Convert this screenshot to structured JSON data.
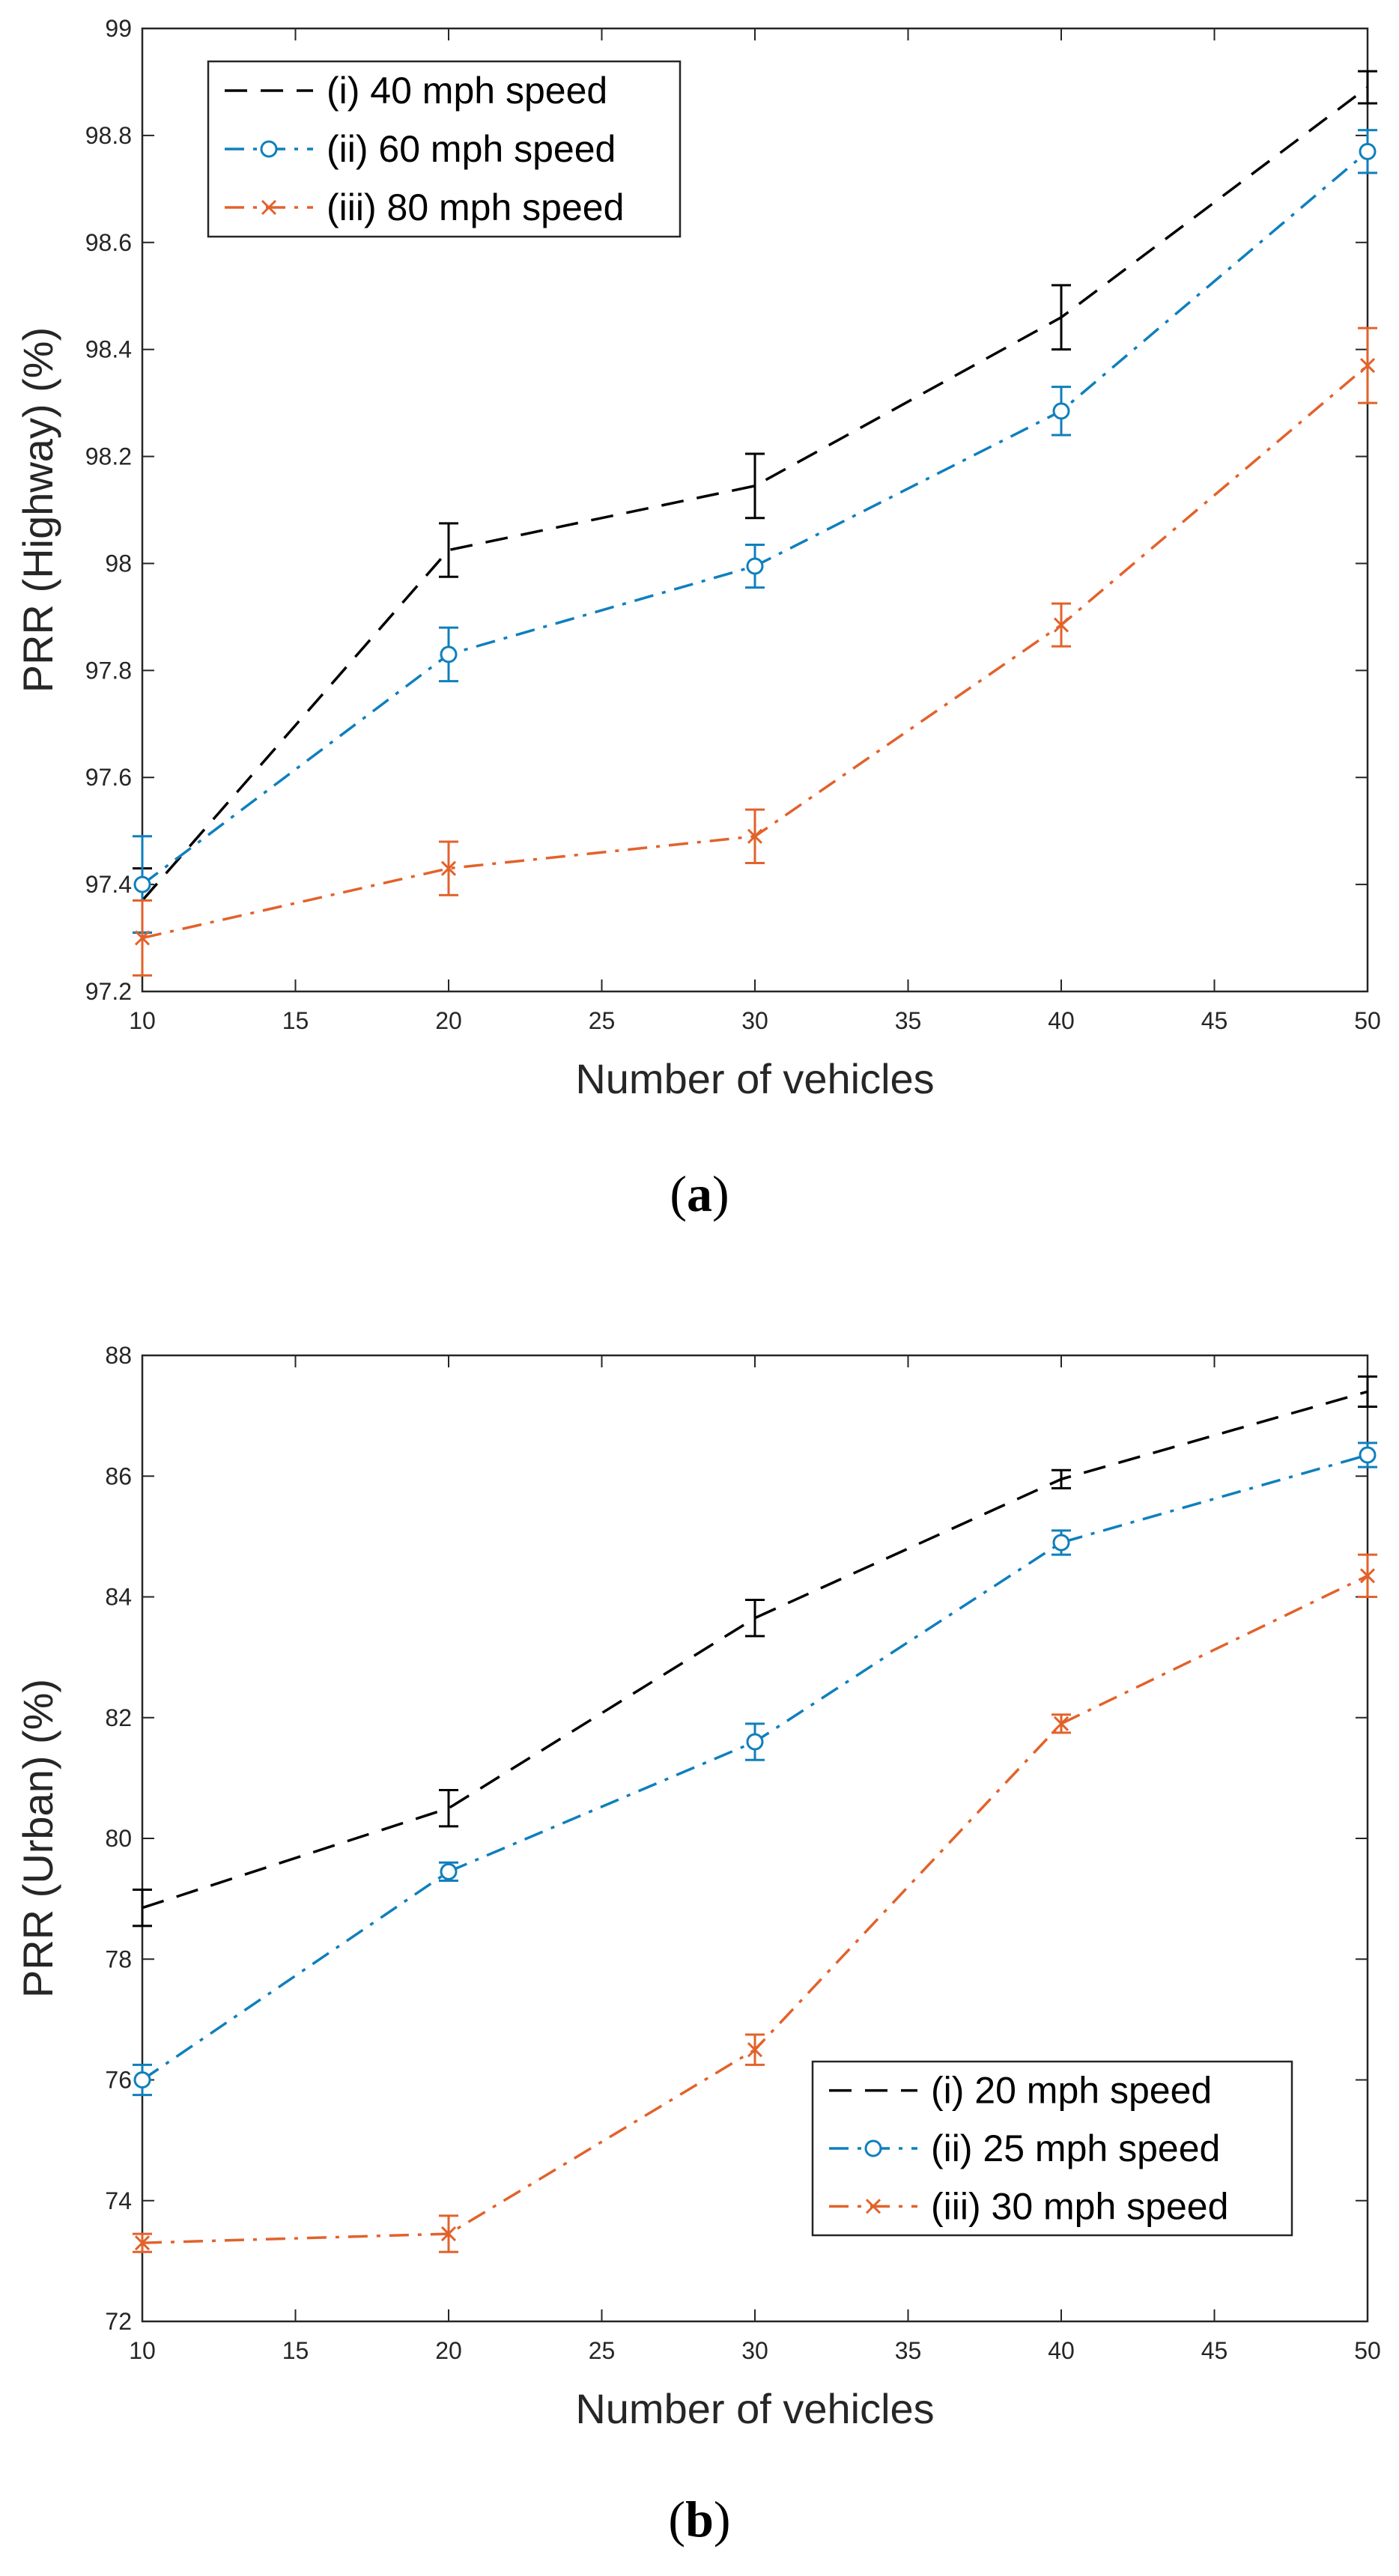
{
  "chart_data": [
    {
      "type": "line",
      "panel_label": "a",
      "xlabel": "Number of vehicles",
      "ylabel": "PRR (Highway) (%)",
      "xlim": [
        10,
        50
      ],
      "ylim": [
        97.2,
        99
      ],
      "x_ticks": [
        "10",
        "15",
        "20",
        "25",
        "30",
        "35",
        "40",
        "45",
        "50"
      ],
      "y_ticks": [
        "97.2",
        "97.4",
        "97.6",
        "97.8",
        "98",
        "98.2",
        "98.4",
        "98.6",
        "98.8",
        "99"
      ],
      "legend_position": "top-left",
      "x": [
        10,
        20,
        30,
        40,
        50
      ],
      "series": [
        {
          "name": "(i) 40 mph speed",
          "style": "dashed",
          "marker": "none",
          "color": "#000000",
          "values": [
            97.37,
            98.025,
            98.145,
            98.46,
            98.89
          ],
          "errors": [
            0.06,
            0.05,
            0.06,
            0.06,
            0.03
          ]
        },
        {
          "name": "(ii) 60 mph speed",
          "style": "dashdot",
          "marker": "circle",
          "color": "#0f7fbd",
          "values": [
            97.4,
            97.83,
            97.995,
            98.285,
            98.77
          ],
          "errors": [
            0.09,
            0.05,
            0.04,
            0.045,
            0.04
          ]
        },
        {
          "name": "(iii) 80 mph speed",
          "style": "dashdot",
          "marker": "x",
          "color": "#e2622b",
          "values": [
            97.3,
            97.43,
            97.49,
            97.885,
            98.37
          ],
          "errors": [
            0.07,
            0.05,
            0.05,
            0.04,
            0.07
          ]
        }
      ]
    },
    {
      "type": "line",
      "panel_label": "b",
      "xlabel": "Number of vehicles",
      "ylabel": "PRR (Urban) (%)",
      "xlim": [
        10,
        50
      ],
      "ylim": [
        72,
        88
      ],
      "x_ticks": [
        "10",
        "15",
        "20",
        "25",
        "30",
        "35",
        "40",
        "45",
        "50"
      ],
      "y_ticks": [
        "72",
        "74",
        "76",
        "78",
        "80",
        "82",
        "84",
        "86",
        "88"
      ],
      "legend_position": "bottom-right",
      "x": [
        10,
        20,
        30,
        40,
        50
      ],
      "series": [
        {
          "name": "(i) 20 mph speed",
          "style": "dashed",
          "marker": "none",
          "color": "#000000",
          "values": [
            78.85,
            80.5,
            83.65,
            85.95,
            87.4
          ],
          "errors": [
            0.3,
            0.3,
            0.3,
            0.15,
            0.25
          ]
        },
        {
          "name": "(ii) 25 mph speed",
          "style": "dashdot",
          "marker": "circle",
          "color": "#0f7fbd",
          "values": [
            76.0,
            79.45,
            81.6,
            84.9,
            86.35
          ],
          "errors": [
            0.25,
            0.15,
            0.3,
            0.2,
            0.2
          ]
        },
        {
          "name": "(iii) 30 mph speed",
          "style": "dashdot",
          "marker": "x",
          "color": "#e2622b",
          "values": [
            73.3,
            73.45,
            76.5,
            81.9,
            84.35
          ],
          "errors": [
            0.15,
            0.3,
            0.25,
            0.15,
            0.35
          ]
        }
      ]
    }
  ]
}
